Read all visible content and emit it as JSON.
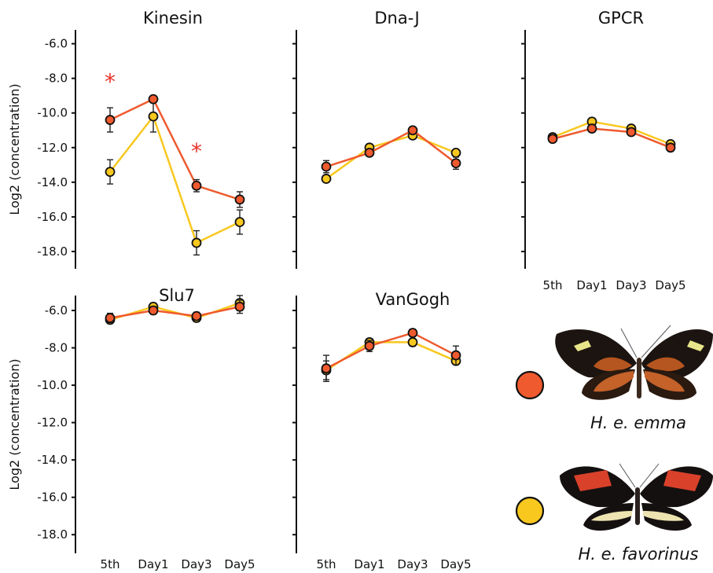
{
  "colors": {
    "emma": "#ef5a2e",
    "favorinus": "#f8c81f",
    "asterisk": "#e8352a"
  },
  "common": {
    "ylabel": "Log2 (concentration)",
    "xcategories": [
      "5th",
      "Day1",
      "Day3",
      "Day5"
    ],
    "ytick_labels": [
      "-6.0",
      "-8.0",
      "-10.0",
      "-12.0",
      "-14.0",
      "-16.0",
      "-18.0"
    ]
  },
  "legend": [
    {
      "name": "H. e. emma",
      "color": "#ef5a2e",
      "butterfly": "butterfly-emma-icon"
    },
    {
      "name": "H. e. favorinus",
      "color": "#f8c81f",
      "butterfly": "butterfly-favorinus-icon"
    }
  ],
  "chart_data": [
    {
      "type": "line",
      "title": "Kinesin",
      "ylim": [
        -19,
        -5.2
      ],
      "categories": [
        "5th",
        "Day1",
        "Day3",
        "Day5"
      ],
      "series": [
        {
          "name": "H. e. emma",
          "values": [
            -10.4,
            -9.2,
            -14.2,
            -15.0
          ],
          "errors": [
            0.7,
            0.15,
            0.35,
            0.45
          ]
        },
        {
          "name": "H. e. favorinus",
          "values": [
            -13.4,
            -10.2,
            -17.5,
            -16.3
          ],
          "errors": [
            0.7,
            0.9,
            0.7,
            0.7
          ]
        }
      ],
      "annotations": [
        {
          "text": "*",
          "category": "5th",
          "y": -8.0
        },
        {
          "text": "*",
          "category": "Day3",
          "y": -12.0
        }
      ]
    },
    {
      "type": "line",
      "title": "Dna-J",
      "ylim": [
        -19,
        -5.2
      ],
      "categories": [
        "5th",
        "Day1",
        "Day3",
        "Day5"
      ],
      "series": [
        {
          "name": "H. e. emma",
          "values": [
            -13.1,
            -12.3,
            -11.0,
            -12.9
          ],
          "errors": [
            0.35,
            0.2,
            0.2,
            0.35
          ]
        },
        {
          "name": "H. e. favorinus",
          "values": [
            -13.8,
            -12.0,
            -11.3,
            -12.3
          ],
          "errors": [
            0.15,
            0.15,
            0.15,
            0.2
          ]
        }
      ]
    },
    {
      "type": "line",
      "title": "GPCR",
      "ylim": [
        -19,
        -5.2
      ],
      "categories": [
        "5th",
        "Day1",
        "Day3",
        "Day5"
      ],
      "series": [
        {
          "name": "H. e. emma",
          "values": [
            -11.5,
            -10.9,
            -11.1,
            -12.0
          ],
          "errors": [
            0.15,
            0.15,
            0.15,
            0.15
          ]
        },
        {
          "name": "H. e. favorinus",
          "values": [
            -11.4,
            -10.5,
            -10.9,
            -11.8
          ],
          "errors": [
            0.15,
            0.15,
            0.15,
            0.15
          ]
        }
      ]
    },
    {
      "type": "line",
      "title": "Slu7",
      "ylim": [
        -19,
        -5.2
      ],
      "categories": [
        "5th",
        "Day1",
        "Day3",
        "Day5"
      ],
      "series": [
        {
          "name": "H. e. emma",
          "values": [
            -6.4,
            -6.0,
            -6.3,
            -5.8
          ],
          "errors": [
            0.25,
            0.2,
            0.2,
            0.35
          ]
        },
        {
          "name": "H. e. favorinus",
          "values": [
            -6.5,
            -5.8,
            -6.4,
            -5.6
          ],
          "errors": [
            0.2,
            0.2,
            0.2,
            0.4
          ]
        }
      ]
    },
    {
      "type": "line",
      "title": "VanGogh",
      "ylim": [
        -19,
        -5.2
      ],
      "categories": [
        "5th",
        "Day1",
        "Day3",
        "Day5"
      ],
      "series": [
        {
          "name": "H. e. emma",
          "values": [
            -9.1,
            -7.9,
            -7.2,
            -8.4
          ],
          "errors": [
            0.7,
            0.3,
            0.2,
            0.5
          ]
        },
        {
          "name": "H. e. favorinus",
          "values": [
            -9.2,
            -7.7,
            -7.7,
            -8.7
          ],
          "errors": [
            0.5,
            0.2,
            0.2,
            0.2
          ]
        }
      ]
    }
  ]
}
